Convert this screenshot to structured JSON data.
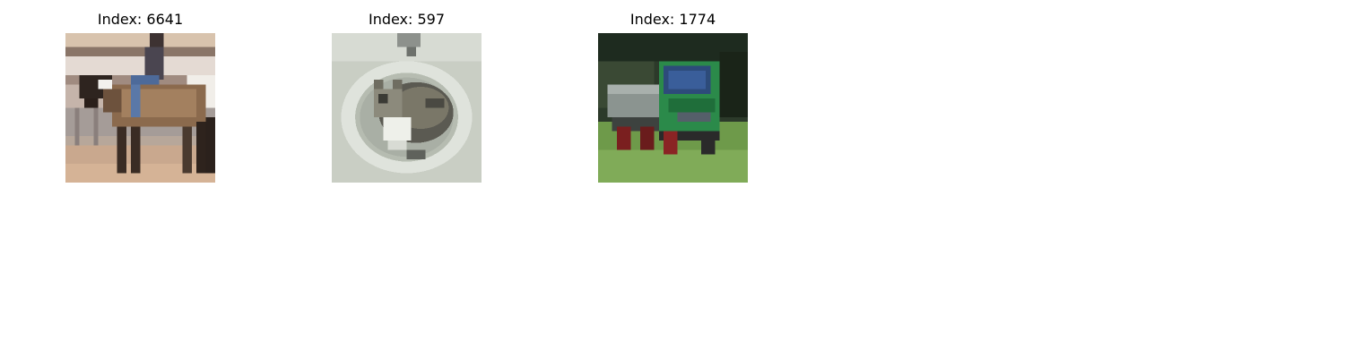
{
  "panels": [
    {
      "title": "Index: 6641",
      "subject": "horse with rider"
    },
    {
      "title": "Index: 597",
      "subject": "cat in sink"
    },
    {
      "title": "Index: 1774",
      "subject": "green truck"
    }
  ]
}
